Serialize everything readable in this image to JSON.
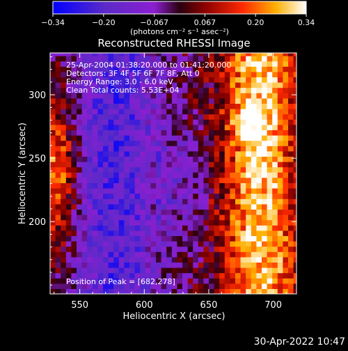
{
  "chart_data": {
    "type": "heatmap",
    "title": "Reconstructed RHESSI Image",
    "xlabel": "Heliocentric X (arcsec)",
    "ylabel": "Heliocentric Y (arcsec)",
    "xlim": [
      527,
      718
    ],
    "ylim": [
      143,
      333
    ],
    "x_ticks": [
      550,
      600,
      650,
      700
    ],
    "y_ticks": [
      200,
      250,
      300
    ],
    "colorbar": {
      "range": [
        -0.34,
        0.34
      ],
      "tick_labels": [
        "-0.34",
        "-0.20",
        "-0.067",
        "0.067",
        "0.20",
        "0.34"
      ],
      "unit_label": "(photons cm⁻² s⁻¹ asec⁻²)"
    },
    "annotations": [
      "25-Apr-2004 01:38:20.000 to 01:41:20.000",
      "Detectors: 3F 4F 5F 6F 7F 8F, Att 0",
      "Energy Range: 3.0 - 6.0 keV",
      "Clean     Total counts: 5.53E+04"
    ],
    "peak_label": "Position of Peak = [682,278]",
    "peak_position": [
      682,
      278
    ],
    "grid": false,
    "colormap": [
      "#0000ff",
      "#5a2ac8",
      "#8b1fd0",
      "#2a0010",
      "#8b0000",
      "#ff2a00",
      "#ffb000",
      "#ffffff"
    ]
  },
  "timestamp": "30-Apr-2022 10:47"
}
